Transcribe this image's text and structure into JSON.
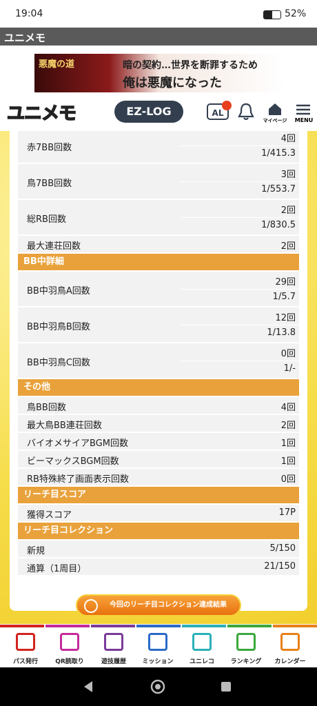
{
  "status_bar": {
    "time": "19:04",
    "battery": "52%"
  },
  "app_bar": {
    "title": "ユニメモ"
  },
  "banner": {
    "badge": "悪魔の道",
    "line1": "暗の契約…世界を断罪するため",
    "line2": "俺は悪魔になった"
  },
  "header": {
    "logo": "ユニメモ",
    "ez_log": "EZ-LOG",
    "al_badge": "AL",
    "mypage": "マイページ",
    "menu": "MENU"
  },
  "blocks": [
    {
      "rows": [
        {
          "label": "赤7BB回数",
          "values": [
            "4回",
            "1/415.3"
          ]
        },
        {
          "label": "鳥7BB回数",
          "values": [
            "3回",
            "1/553.7"
          ]
        },
        {
          "label": "総RB回数",
          "values": [
            "2回",
            "1/830.5"
          ]
        },
        {
          "label": "最大連荘回数",
          "values": [
            "2回"
          ]
        }
      ]
    },
    {
      "heading": "BB中詳細",
      "rows": [
        {
          "label": "BB中羽鳥A回数",
          "values": [
            "29回",
            "1/5.7"
          ]
        },
        {
          "label": "BB中羽鳥B回数",
          "values": [
            "12回",
            "1/13.8"
          ]
        },
        {
          "label": "BB中羽鳥C回数",
          "values": [
            "0回",
            "1/-"
          ]
        }
      ]
    },
    {
      "heading": "その他",
      "rows": [
        {
          "label": "鳥BB回数",
          "values": [
            "4回"
          ]
        },
        {
          "label": "最大鳥BB連荘回数",
          "values": [
            "2回"
          ]
        },
        {
          "label": "バイオメサイアBGM回数",
          "values": [
            "1回"
          ]
        },
        {
          "label": "ビーマックスBGM回数",
          "values": [
            "1回"
          ]
        },
        {
          "label": "RB特殊終了画面表示回数",
          "values": [
            "0回"
          ]
        }
      ]
    },
    {
      "heading": "リーチ目スコア",
      "rows": [
        {
          "label": "獲得スコア",
          "values": [
            "17P"
          ]
        }
      ]
    },
    {
      "heading": "リーチ目コレクション",
      "rows": [
        {
          "label": "新規",
          "values": [
            "5/150"
          ]
        },
        {
          "label": "通算（1周目）",
          "values": [
            "21/150"
          ]
        }
      ]
    }
  ],
  "result_button": "今回のリーチ目コレクション達成結果",
  "bottom_nav": [
    "パス発行",
    "QR読取り",
    "遊技履歴",
    "ミッション",
    "ユニレコ",
    "ランキング",
    "カレンダー"
  ]
}
